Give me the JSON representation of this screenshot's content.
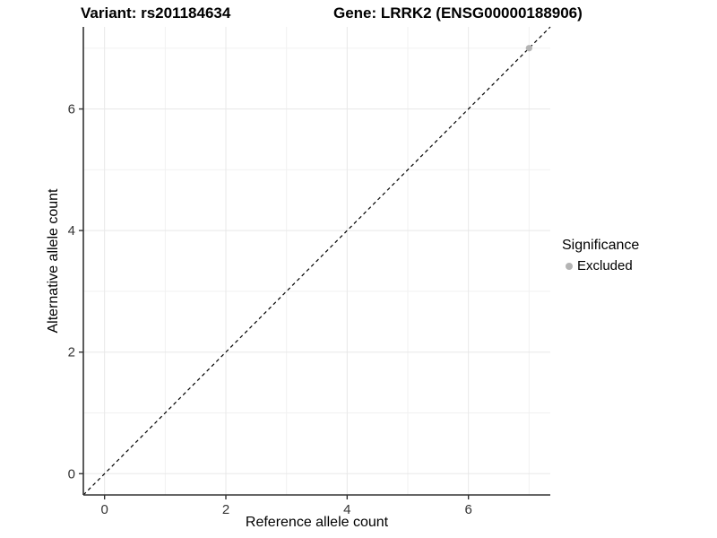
{
  "colors": {
    "background": "#ffffff",
    "grid_major": "#e8e8e8",
    "grid_minor": "#f1f1f1",
    "axis_line": "#333333",
    "tick_mark": "#333333",
    "tick_label": "#333333",
    "reference_line": "#000000",
    "point": "#b4b4b4"
  },
  "chart_data": {
    "type": "scatter",
    "titles": {
      "variant": "Variant: rs201184634",
      "gene": "Gene: LRRK2 (ENSG00000188906)"
    },
    "xlabel": "Reference allele count",
    "ylabel": "Alternative allele count",
    "xlim": [
      -0.35,
      7.35
    ],
    "ylim": [
      -0.35,
      7.35
    ],
    "x_ticks": {
      "major": [
        0,
        2,
        4,
        6
      ],
      "labels": [
        "0",
        "2",
        "4",
        "6"
      ],
      "minor": [
        1,
        3,
        5,
        7
      ]
    },
    "y_ticks": {
      "major": [
        0,
        2,
        4,
        6
      ],
      "labels": [
        "0",
        "2",
        "4",
        "6"
      ],
      "minor": [
        1,
        3,
        5,
        7
      ]
    },
    "grid": "major+minor",
    "reference_line": {
      "type": "identity",
      "equation": "y = x",
      "style": "dashed"
    },
    "series": [
      {
        "name": "Excluded",
        "color": "#b4b4b4",
        "points": [
          {
            "x": 7,
            "y": 7
          }
        ]
      }
    ],
    "legend": {
      "title": "Significance",
      "position": "right",
      "entries": [
        {
          "label": "Excluded",
          "color": "#b4b4b4"
        }
      ]
    }
  }
}
